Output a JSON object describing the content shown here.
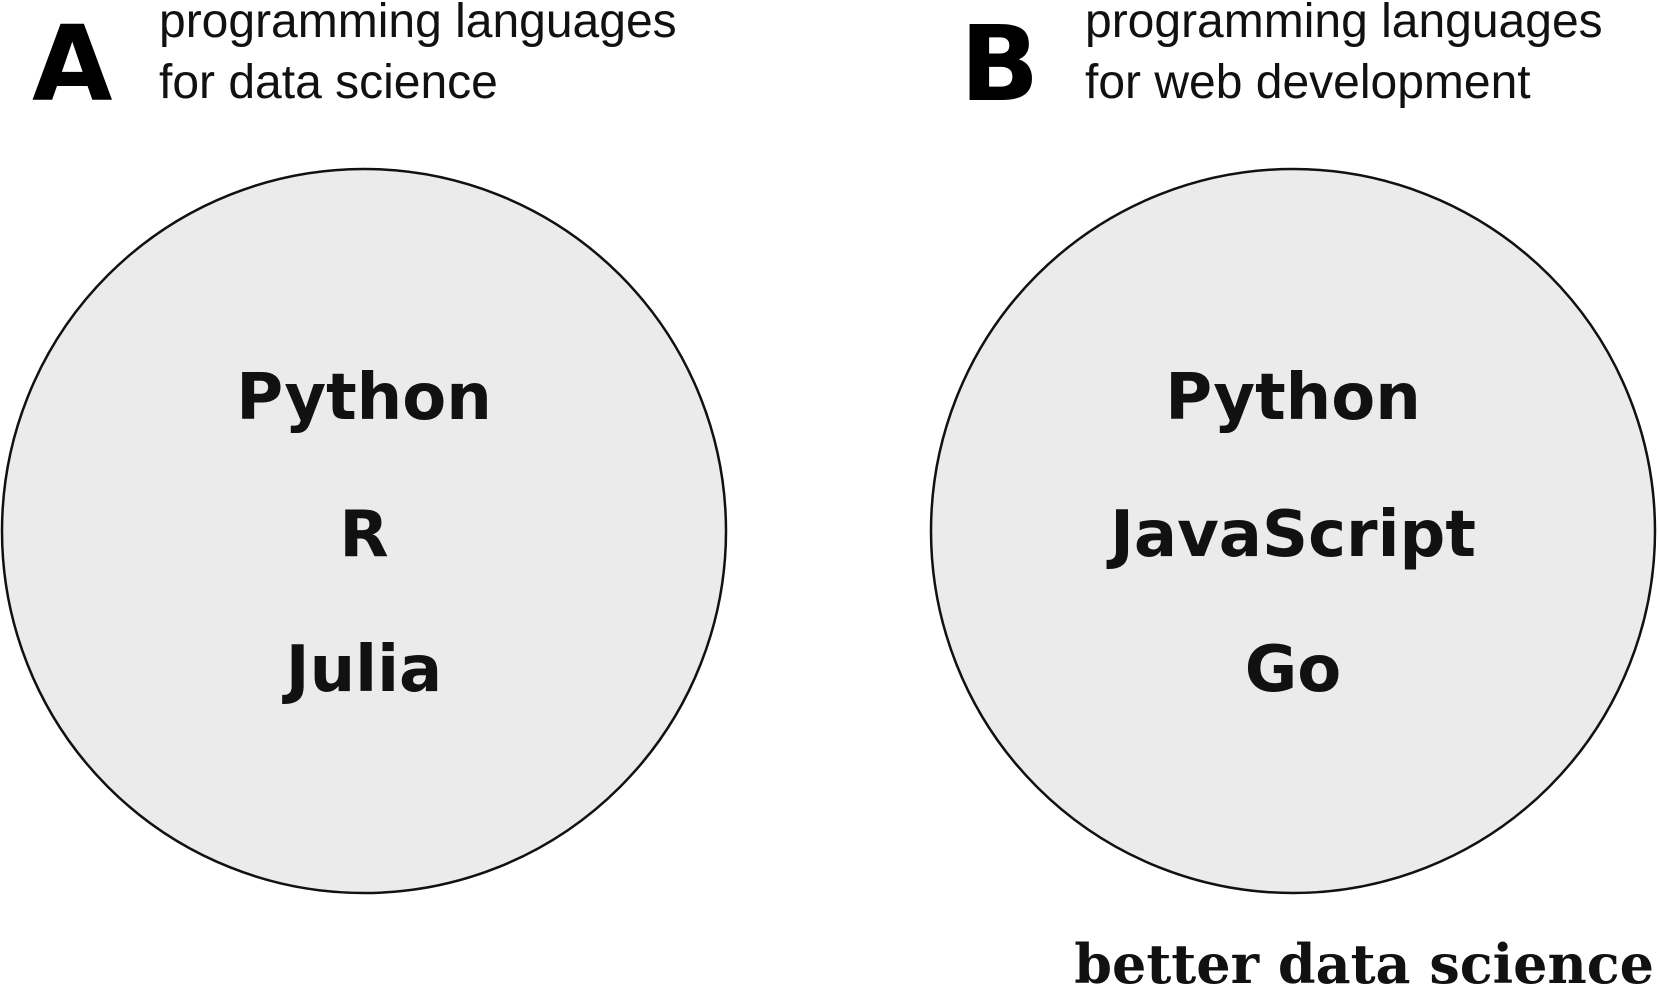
{
  "sets": [
    {
      "letter": "A",
      "caption": [
        "programming languages",
        "for data science"
      ],
      "items": [
        "Python",
        "R",
        "Julia"
      ]
    },
    {
      "letter": "B",
      "caption": [
        "programming languages",
        "for web development"
      ],
      "items": [
        "Python",
        "JavaScript",
        "Go"
      ]
    }
  ],
  "logo": "better data science"
}
